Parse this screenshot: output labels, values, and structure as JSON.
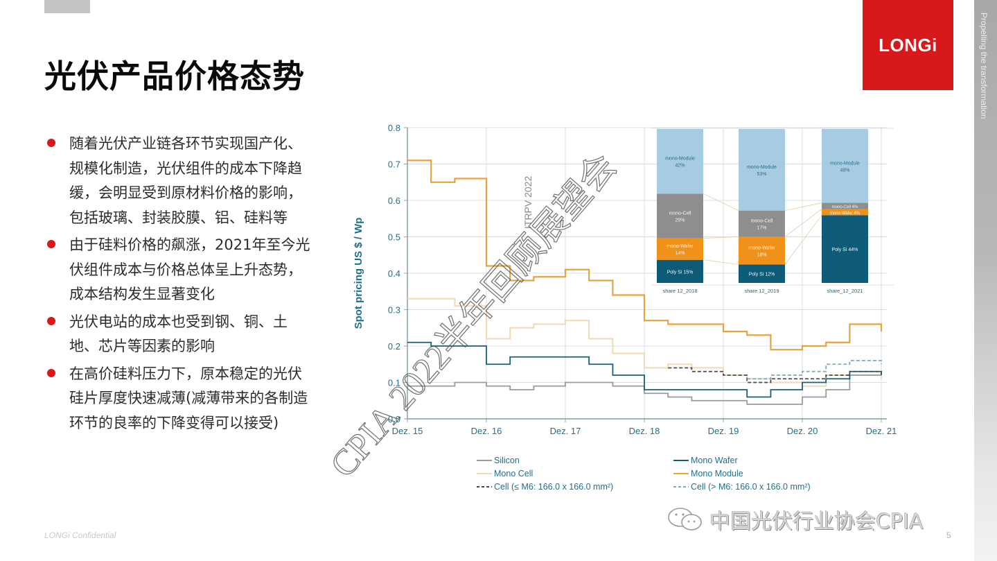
{
  "slide": {
    "title": "光伏产品价格态势",
    "logo_text": "LONGi",
    "sidebar_tagline": "Propelling the transformation",
    "footer_confidential": "LONGi Confidential",
    "page_number": "5",
    "wechat_source": "中国光伏行业协会CPIA",
    "watermark_text": "CPIA 2022半年回顾展望会",
    "chart_source_label": "ITRPV 2022",
    "colors": {
      "brand_red": "#d7191c",
      "title": "#0a0a0a",
      "axis_text": "#1f6f8b",
      "silicon": "#9a9a9a",
      "mono_wafer": "#1a5f73",
      "mono_cell": "#f2d9b3",
      "mono_module": "#e8a33d",
      "cell_small": "#4a4a4a",
      "cell_large": "#7fa8b8"
    }
  },
  "bullets": [
    {
      "text": "随着光伏产业链各环节实现国产化、规模化制造，光伏组件的成本下降趋缓，会明显受到原材料价格的影响，包括玻璃、封装胶膜、铝、硅料等"
    },
    {
      "text": "由于硅料价格的飙涨，2021年至今光伏组件成本与价格总体呈上升态势，成本结构发生显著变化"
    },
    {
      "text": "光伏电站的成本也受到钢、铜、土地、芯片等因素的影响"
    },
    {
      "text": "在高价硅料压力下，原本稳定的光伏硅片厚度快速减薄(减薄带来的各制造环节的良率的下降变得可以接受)"
    }
  ],
  "chart_data": [
    {
      "type": "line",
      "title": "",
      "xlabel": "",
      "ylabel": "Spot pricing US $ / Wp",
      "ylim": [
        0.0,
        0.8
      ],
      "yticks": [
        "0.0",
        "0.1",
        "0.2",
        "0.3",
        "0.4",
        "0.5",
        "0.6",
        "0.7",
        "0.8"
      ],
      "x_tick_labels": [
        "Dez. 15",
        "Dez. 16",
        "Dez. 17",
        "Dez. 18",
        "Dez. 19",
        "Dez. 20",
        "Dez. 21"
      ],
      "grid": true,
      "legend_position": "bottom",
      "x": [
        2015.9,
        2016.2,
        2016.5,
        2016.9,
        2017.2,
        2017.5,
        2017.9,
        2018.2,
        2018.5,
        2018.9,
        2019.2,
        2019.5,
        2019.9,
        2020.2,
        2020.5,
        2020.9,
        2021.2,
        2021.5,
        2021.9
      ],
      "series": [
        {
          "name": "Silicon",
          "style": "solid",
          "color": "#9a9a9a",
          "values": [
            0.09,
            0.09,
            0.1,
            0.09,
            0.08,
            0.09,
            0.1,
            0.1,
            0.09,
            0.07,
            0.06,
            0.05,
            0.05,
            0.04,
            0.04,
            0.06,
            0.08,
            0.12,
            0.12
          ]
        },
        {
          "name": "Mono Wafer",
          "style": "solid",
          "color": "#1a5f73",
          "values": [
            0.21,
            0.2,
            0.2,
            0.15,
            0.17,
            0.17,
            0.17,
            0.15,
            0.12,
            0.08,
            0.08,
            0.08,
            0.08,
            0.06,
            0.08,
            0.1,
            0.11,
            0.13,
            0.12
          ]
        },
        {
          "name": "Mono Cell",
          "style": "solid",
          "color": "#f2d9b3",
          "values": [
            0.33,
            0.33,
            0.31,
            0.22,
            0.25,
            0.26,
            0.27,
            0.22,
            0.18,
            0.14,
            0.15,
            0.14,
            0.12,
            0.11,
            0.1,
            0.09,
            0.12,
            0.12,
            0.11
          ]
        },
        {
          "name": "Mono Module",
          "style": "solid",
          "color": "#e8a33d",
          "values": [
            0.71,
            0.65,
            0.66,
            0.42,
            0.38,
            0.39,
            0.41,
            0.38,
            0.34,
            0.27,
            0.26,
            0.26,
            0.24,
            0.23,
            0.19,
            0.2,
            0.21,
            0.26,
            0.24
          ]
        },
        {
          "name": "Cell (≤ M6: 166.0 x 166.0 mm²)",
          "style": "dashed",
          "color": "#4a4a4a",
          "values": [
            null,
            null,
            null,
            null,
            null,
            null,
            null,
            null,
            null,
            null,
            0.14,
            0.13,
            0.12,
            0.1,
            0.11,
            0.11,
            0.12,
            0.13,
            0.12
          ]
        },
        {
          "name": "Cell (> M6: 166.0 x 166.0 mm²)",
          "style": "dashed",
          "color": "#7fa8b8",
          "values": [
            null,
            null,
            null,
            null,
            null,
            null,
            null,
            null,
            null,
            null,
            null,
            null,
            null,
            0.11,
            0.12,
            0.13,
            0.15,
            0.16,
            0.15
          ]
        }
      ]
    },
    {
      "type": "bar",
      "stacked": true,
      "title": "",
      "categories": [
        "share 12_2018",
        "share 12_2019",
        "share_12_2021"
      ],
      "unit": "%",
      "series": [
        {
          "name": "Poly Si",
          "color": "#0e5b78",
          "values": [
            15,
            12,
            44
          ]
        },
        {
          "name": "mono-Wafer",
          "color": "#f0921a",
          "values": [
            14,
            18,
            4
          ]
        },
        {
          "name": "mono-Cell",
          "color": "#8e8e8e",
          "values": [
            29,
            17,
            4
          ]
        },
        {
          "name": "mono-Module",
          "color": "#a7cbe0",
          "values": [
            42,
            53,
            48
          ]
        }
      ],
      "segment_labels": [
        [
          "Poly Si 15%",
          "mono-Wafer 14%",
          "mono-Cell 29%",
          "mono-Module 42%"
        ],
        [
          "Poly Si 12%",
          "mono-Wafer 18%",
          "mono-Cell 17%",
          "mono-Module 53%"
        ],
        [
          "Poly Si 44%",
          "mono-Wafer 4%",
          "mono-Cell 4%",
          "mono-Module 48%"
        ]
      ]
    }
  ],
  "legend": [
    {
      "label": "Silicon",
      "style": "solid",
      "color": "#9a9a9a"
    },
    {
      "label": "Mono Wafer",
      "style": "solid",
      "color": "#1a5f73"
    },
    {
      "label": "Mono Cell",
      "style": "solid",
      "color": "#f2d9b3"
    },
    {
      "label": "Mono Module",
      "style": "solid",
      "color": "#e8a33d"
    },
    {
      "label": "Cell (≤ M6: 166.0 x 166.0 mm²)",
      "style": "dashed",
      "color": "#4a4a4a"
    },
    {
      "label": "Cell (> M6: 166.0 x 166.0 mm²)",
      "style": "dashed",
      "color": "#7fa8b8"
    }
  ]
}
